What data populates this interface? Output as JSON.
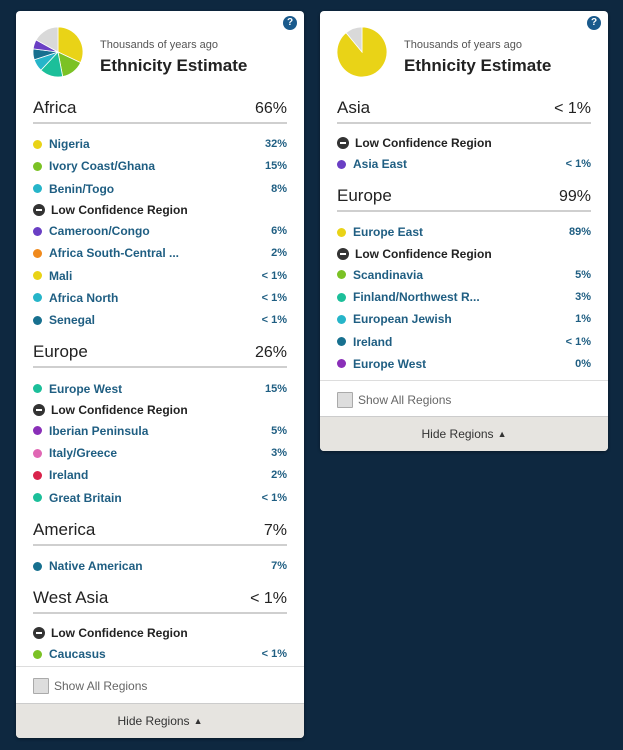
{
  "help_glyph": "?",
  "card1": {
    "subtitle": "Thousands of years ago",
    "title": "Ethnicity Estimate",
    "pie": [
      {
        "region": "Nigeria",
        "percent": 32,
        "color": "#e9d317"
      },
      {
        "region": "Ivory Coast/Ghana",
        "percent": 15,
        "color": "#7bc225"
      },
      {
        "region": "Europe West",
        "percent": 15,
        "color": "#1cbf9a"
      },
      {
        "region": "Benin/Togo",
        "percent": 8,
        "color": "#26b5c9"
      },
      {
        "region": "Native American",
        "percent": 7,
        "color": "#17708f"
      },
      {
        "region": "Cameroon/Congo",
        "percent": 6,
        "color": "#6a3fc4"
      },
      {
        "region": "Other",
        "percent": 17,
        "color": "#d9d9d9"
      }
    ],
    "groups": [
      {
        "region": "Africa",
        "pct": "66%",
        "items": [
          {
            "name": "Nigeria",
            "val": "32%",
            "color": "#e9d317"
          },
          {
            "name": "Ivory Coast/Ghana",
            "val": "15%",
            "color": "#7bc225"
          },
          {
            "name": "Benin/Togo",
            "val": "8%",
            "color": "#26b5c9"
          }
        ],
        "low_label": "Low Confidence Region",
        "low_items": [
          {
            "name": "Cameroon/Congo",
            "val": "6%",
            "color": "#6a3fc4"
          },
          {
            "name": "Africa South-Central ...",
            "val": "2%",
            "color": "#f08a1d"
          },
          {
            "name": "Mali",
            "val": "< 1%",
            "color": "#e9d317"
          },
          {
            "name": "Africa North",
            "val": "< 1%",
            "color": "#26b5c9"
          },
          {
            "name": "Senegal",
            "val": "< 1%",
            "color": "#17708f"
          }
        ]
      },
      {
        "region": "Europe",
        "pct": "26%",
        "items": [
          {
            "name": "Europe West",
            "val": "15%",
            "color": "#1cbf9a"
          }
        ],
        "low_label": "Low Confidence Region",
        "low_items": [
          {
            "name": "Iberian Peninsula",
            "val": "5%",
            "color": "#8a2fb8"
          },
          {
            "name": "Italy/Greece",
            "val": "3%",
            "color": "#e067b4"
          },
          {
            "name": "Ireland",
            "val": "2%",
            "color": "#d9234b"
          },
          {
            "name": "Great Britain",
            "val": "< 1%",
            "color": "#1cbf9a"
          }
        ]
      },
      {
        "region": "America",
        "pct": "7%",
        "items": [
          {
            "name": "Native American",
            "val": "7%",
            "color": "#17708f"
          }
        ]
      },
      {
        "region": "West Asia",
        "pct": "< 1%",
        "items": [],
        "low_label": "Low Confidence Region",
        "low_items": [
          {
            "name": "Caucasus",
            "val": "< 1%",
            "color": "#7bc225"
          }
        ]
      }
    ],
    "show_all": "Show All Regions",
    "hide": "Hide Regions"
  },
  "card2": {
    "subtitle": "Thousands of years ago",
    "title": "Ethnicity Estimate",
    "pie": [
      {
        "region": "Europe East",
        "percent": 89,
        "color": "#e9d317"
      },
      {
        "region": "Other",
        "percent": 11,
        "color": "#d9d9d9"
      }
    ],
    "groups": [
      {
        "region": "Asia",
        "pct": "< 1%",
        "items": [],
        "low_label": "Low Confidence Region",
        "low_items": [
          {
            "name": "Asia East",
            "val": "< 1%",
            "color": "#6a3fc4"
          }
        ]
      },
      {
        "region": "Europe",
        "pct": "99%",
        "items": [
          {
            "name": "Europe East",
            "val": "89%",
            "color": "#e9d317"
          }
        ],
        "low_label": "Low Confidence Region",
        "low_items": [
          {
            "name": "Scandinavia",
            "val": "5%",
            "color": "#7bc225"
          },
          {
            "name": "Finland/Northwest R...",
            "val": "3%",
            "color": "#1cbf9a"
          },
          {
            "name": "European Jewish",
            "val": "1%",
            "color": "#26b5c9"
          },
          {
            "name": "Ireland",
            "val": "< 1%",
            "color": "#17708f"
          },
          {
            "name": "Europe West",
            "val": "0%",
            "color": "#8a2fb8"
          }
        ]
      }
    ],
    "show_all": "Show All Regions",
    "hide": "Hide Regions"
  }
}
